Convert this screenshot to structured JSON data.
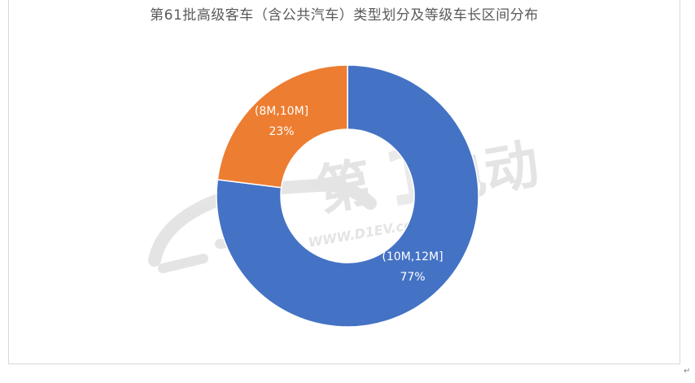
{
  "chart_data": {
    "type": "pie",
    "title": "第61批高级客车（含公共汽车）类型划分及等级车长区间分布",
    "slices": [
      {
        "label": "(10M,12M]",
        "percent_label": "77%",
        "value": 77,
        "color": "#4472C4"
      },
      {
        "label": "(8M,10M]",
        "percent_label": "23%",
        "value": 23,
        "color": "#ED7D31"
      }
    ],
    "donut": true,
    "start_angle_deg": 0,
    "legend": "none",
    "watermark": "第1电动 WWW.D1EV.com"
  },
  "doc": {
    "paragraph_mark": "↵"
  }
}
